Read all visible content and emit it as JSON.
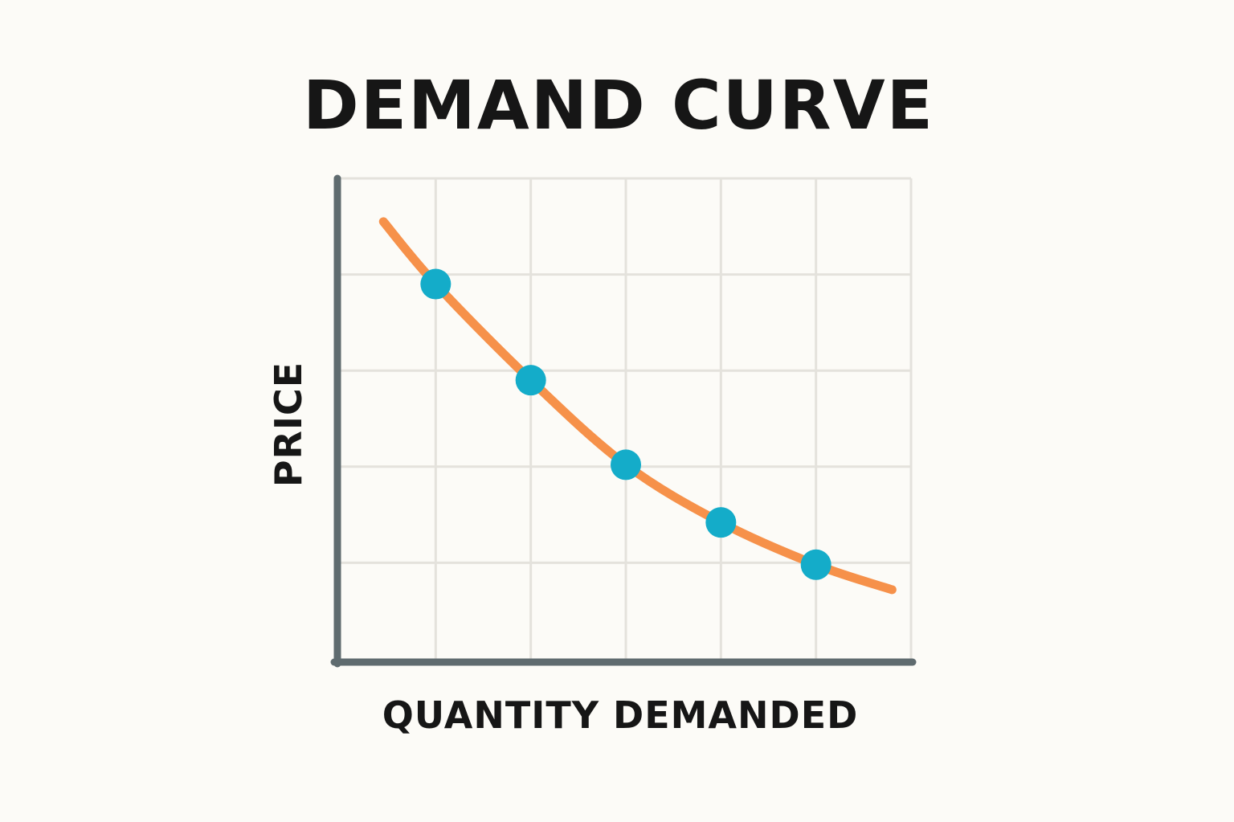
{
  "chart_data": {
    "type": "line",
    "title": "DEMAND CURVE",
    "xlabel": "QUANTITY DEMANDED",
    "ylabel": "PRICE",
    "xlim": [
      0,
      6
    ],
    "ylim": [
      0,
      5
    ],
    "grid": true,
    "legend": "none",
    "curve": {
      "x": [
        0.45,
        1.0,
        2.0,
        3.0,
        4.0,
        5.0,
        5.8
      ],
      "y": [
        4.55,
        3.9,
        2.9,
        2.02,
        1.42,
        0.98,
        0.72
      ]
    },
    "points": {
      "x": [
        1,
        2,
        3,
        4,
        5
      ],
      "y": [
        3.9,
        2.9,
        2.02,
        1.42,
        0.98
      ]
    },
    "colors": {
      "curve": "#f6914a",
      "points": "#14acc9",
      "axis": "#5f6b6f",
      "grid": "#e4e2dc",
      "text": "#161616",
      "background": "#fcfbf7"
    }
  }
}
